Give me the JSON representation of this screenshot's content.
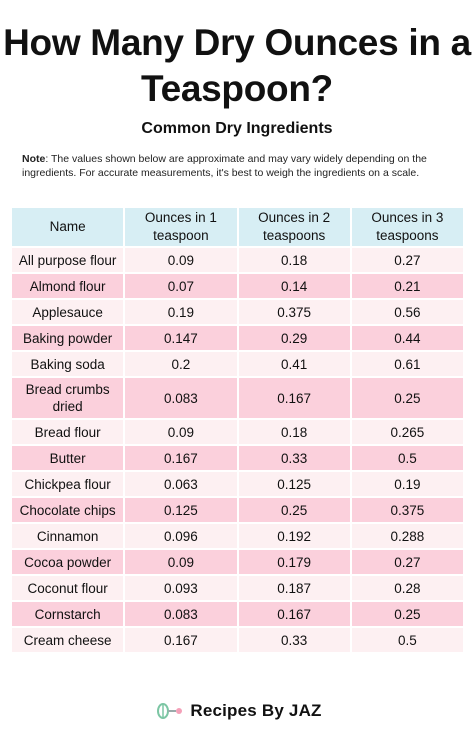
{
  "title": "How Many Dry Ounces in a Teaspoon?",
  "subtitle": "Common Dry Ingredients",
  "note": {
    "label": "Note",
    "text": ": The values shown below are approximate and may vary widely depending on the ingredients. For accurate measurements, it's best to weigh the ingredients on a scale."
  },
  "table": {
    "headers": [
      "Name",
      "Ounces in 1 teaspoon",
      "Ounces in 2 teaspoons",
      "Ounces in 3 teaspoons"
    ],
    "rows": [
      [
        "All purpose flour",
        "0.09",
        "0.18",
        "0.27"
      ],
      [
        "Almond flour",
        "0.07",
        "0.14",
        "0.21"
      ],
      [
        "Applesauce",
        "0.19",
        "0.375",
        "0.56"
      ],
      [
        "Baking powder",
        "0.147",
        "0.29",
        "0.44"
      ],
      [
        "Baking soda",
        "0.2",
        "0.41",
        "0.61"
      ],
      [
        "Bread crumbs dried",
        "0.083",
        "0.167",
        "0.25"
      ],
      [
        "Bread flour",
        "0.09",
        "0.18",
        "0.265"
      ],
      [
        "Butter",
        "0.167",
        "0.33",
        "0.5"
      ],
      [
        "Chickpea flour",
        "0.063",
        "0.125",
        "0.19"
      ],
      [
        "Chocolate chips",
        "0.125",
        "0.25",
        "0.375"
      ],
      [
        "Cinnamon",
        "0.096",
        "0.192",
        "0.288"
      ],
      [
        "Cocoa powder",
        "0.09",
        "0.179",
        "0.27"
      ],
      [
        "Coconut flour",
        "0.093",
        "0.187",
        "0.28"
      ],
      [
        "Cornstarch",
        "0.083",
        "0.167",
        "0.25"
      ],
      [
        "Cream cheese",
        "0.167",
        "0.33",
        "0.5"
      ]
    ]
  },
  "footer": {
    "brand": "Recipes By JAZ",
    "logo_icon": "whisk-icon"
  },
  "colors": {
    "header_bg": "#d7eef4",
    "row_light": "#fdf0f2",
    "row_pink": "#fbd0dc",
    "logo_green": "#7cc6a4",
    "logo_pink": "#f4a0b8"
  }
}
